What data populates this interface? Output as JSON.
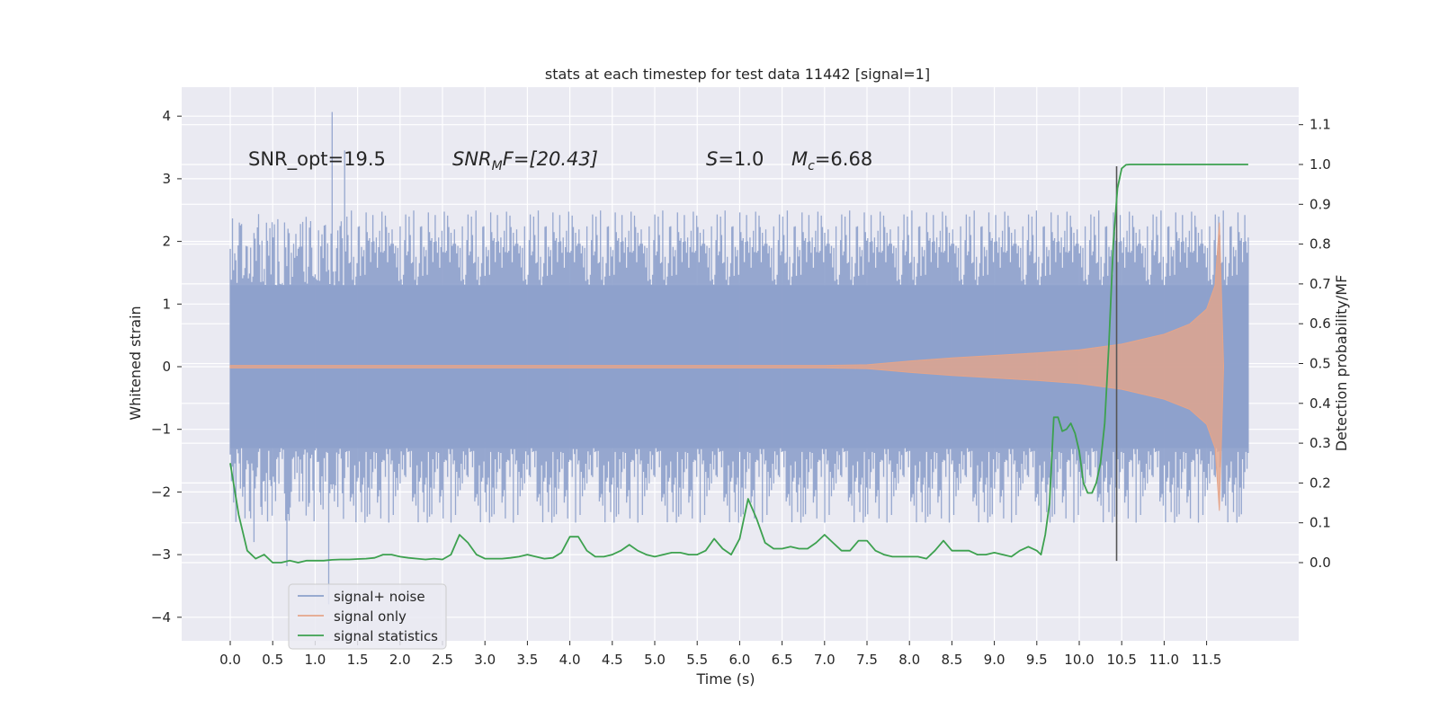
{
  "chart_data": {
    "type": "line",
    "title": "stats at each timestep for test data 11442 [signal=1]",
    "xlabel": "Time (s)",
    "ylabel": "Whitened strain",
    "y2label": "Detection probability/MF",
    "xlim": [
      -0.6,
      12.6
    ],
    "ylim": [
      -4.4,
      4.45
    ],
    "y2lim": [
      -0.2,
      1.2
    ],
    "xticks": [
      "0.0",
      "0.5",
      "1.0",
      "1.5",
      "2.0",
      "2.5",
      "3.0",
      "3.5",
      "4.0",
      "4.5",
      "5.0",
      "5.5",
      "6.0",
      "6.5",
      "7.0",
      "7.5",
      "8.0",
      "8.5",
      "9.0",
      "9.5",
      "10.0",
      "10.5",
      "11.0",
      "11.5"
    ],
    "yticks": [
      "4",
      "3",
      "2",
      "1",
      "0",
      "−1",
      "−2",
      "−3",
      "−4"
    ],
    "y2ticks": [
      "1.1",
      "1.0",
      "0.9",
      "0.8",
      "0.7",
      "0.6",
      "0.5",
      "0.4",
      "0.3",
      "0.2",
      "0.1",
      "0.0"
    ],
    "annotations": {
      "snr_opt": "SNR_opt=19.5",
      "snr_mf_base": "SNR",
      "snr_mf_sub": "M",
      "snr_mf_tail": "F=[20.43]",
      "s_var": "S",
      "s_val": "=1.0",
      "mc_var": "M",
      "mc_sub": "c",
      "mc_val": "=6.68"
    },
    "legend": [
      {
        "label": "signal+ noise",
        "color": "#8da0cb"
      },
      {
        "label": "signal only",
        "color": "#e5a58a"
      },
      {
        "label": "signal statistics",
        "color": "#3da14f"
      }
    ],
    "vline_x": 10.44,
    "vline_range": [
      -3.1,
      3.2
    ],
    "series": [
      {
        "name": "signal+ noise",
        "color": "#8da0cb",
        "x_range": [
          0.0,
          11.99
        ],
        "core_abs": 1.3,
        "typical_max": 2.5,
        "peaks_max": 4.1,
        "peaks_min": -4.0
      },
      {
        "name": "signal only",
        "color": "#e5a58a",
        "envelope": {
          "x": [
            0.0,
            7.0,
            7.5,
            8.0,
            8.5,
            9.0,
            9.5,
            10.0,
            10.5,
            11.0,
            11.3,
            11.5,
            11.6,
            11.65,
            11.7
          ],
          "upper": [
            0.02,
            0.02,
            0.03,
            0.09,
            0.14,
            0.18,
            0.22,
            0.27,
            0.36,
            0.52,
            0.68,
            0.92,
            1.3,
            2.3,
            0.0
          ],
          "lower": [
            -0.02,
            -0.02,
            -0.03,
            -0.09,
            -0.14,
            -0.18,
            -0.22,
            -0.27,
            -0.36,
            -0.52,
            -0.68,
            -0.92,
            -1.3,
            -2.3,
            0.0
          ]
        }
      },
      {
        "name": "signal statistics",
        "color": "#3da14f",
        "axis": "right",
        "x": [
          0.0,
          0.1,
          0.2,
          0.3,
          0.4,
          0.5,
          0.6,
          0.7,
          0.8,
          0.9,
          1.0,
          1.1,
          1.2,
          1.3,
          1.4,
          1.5,
          1.6,
          1.7,
          1.8,
          1.9,
          2.0,
          2.1,
          2.2,
          2.3,
          2.4,
          2.5,
          2.6,
          2.7,
          2.8,
          2.9,
          3.0,
          3.1,
          3.2,
          3.3,
          3.4,
          3.5,
          3.6,
          3.7,
          3.8,
          3.9,
          4.0,
          4.1,
          4.2,
          4.3,
          4.4,
          4.5,
          4.6,
          4.7,
          4.8,
          4.9,
          5.0,
          5.1,
          5.2,
          5.3,
          5.4,
          5.5,
          5.6,
          5.7,
          5.8,
          5.9,
          6.0,
          6.1,
          6.2,
          6.3,
          6.4,
          6.5,
          6.6,
          6.7,
          6.8,
          6.9,
          7.0,
          7.1,
          7.2,
          7.3,
          7.4,
          7.5,
          7.6,
          7.7,
          7.8,
          7.9,
          8.0,
          8.1,
          8.2,
          8.3,
          8.4,
          8.5,
          8.6,
          8.7,
          8.8,
          8.9,
          9.0,
          9.1,
          9.2,
          9.3,
          9.4,
          9.5,
          9.55,
          9.6,
          9.65,
          9.7,
          9.75,
          9.8,
          9.85,
          9.9,
          9.95,
          10.0,
          10.05,
          10.1,
          10.15,
          10.2,
          10.25,
          10.3,
          10.35,
          10.4,
          10.45,
          10.5,
          10.55,
          10.6,
          10.8,
          11.0,
          11.5,
          11.99
        ],
        "y": [
          0.25,
          0.12,
          0.03,
          0.01,
          0.02,
          0.0,
          0.0,
          0.005,
          0.0,
          0.005,
          0.005,
          0.005,
          0.007,
          0.008,
          0.008,
          0.009,
          0.01,
          0.012,
          0.02,
          0.02,
          0.015,
          0.012,
          0.01,
          0.008,
          0.01,
          0.008,
          0.02,
          0.07,
          0.05,
          0.02,
          0.01,
          0.01,
          0.01,
          0.012,
          0.015,
          0.02,
          0.015,
          0.01,
          0.012,
          0.025,
          0.065,
          0.065,
          0.03,
          0.015,
          0.015,
          0.02,
          0.03,
          0.045,
          0.03,
          0.02,
          0.015,
          0.02,
          0.025,
          0.025,
          0.02,
          0.02,
          0.03,
          0.06,
          0.035,
          0.02,
          0.06,
          0.16,
          0.11,
          0.05,
          0.035,
          0.035,
          0.04,
          0.035,
          0.035,
          0.05,
          0.07,
          0.05,
          0.03,
          0.03,
          0.055,
          0.055,
          0.03,
          0.02,
          0.015,
          0.015,
          0.015,
          0.015,
          0.01,
          0.03,
          0.055,
          0.03,
          0.03,
          0.03,
          0.02,
          0.02,
          0.025,
          0.02,
          0.015,
          0.03,
          0.04,
          0.03,
          0.02,
          0.07,
          0.15,
          0.365,
          0.365,
          0.33,
          0.335,
          0.35,
          0.325,
          0.28,
          0.2,
          0.175,
          0.175,
          0.2,
          0.25,
          0.35,
          0.55,
          0.8,
          0.94,
          0.99,
          0.999,
          1.0,
          1.0,
          1.0,
          1.0,
          1.0
        ]
      }
    ]
  }
}
